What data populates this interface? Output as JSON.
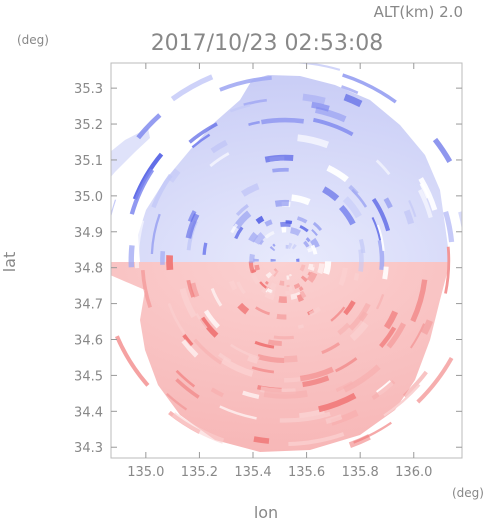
{
  "header": {
    "altitude_label": "ALT(km) 2.0",
    "timestamp": "2017/10/23 02:53:08"
  },
  "chart_data": {
    "type": "heatmap",
    "title": "2017/10/23 02:53:08",
    "subtitle": "ALT(km) 2.0",
    "xlabel": "lon",
    "ylabel": "lat",
    "x_unit": "(deg)",
    "y_unit": "(deg)",
    "xlim": [
      134.87,
      136.18
    ],
    "ylim": [
      34.27,
      35.37
    ],
    "x_ticks": [
      135.0,
      135.2,
      135.4,
      135.6,
      135.8,
      136.0
    ],
    "x_tick_labels": [
      "135.0",
      "135.2",
      "135.4",
      "135.6",
      "135.8",
      "136.0"
    ],
    "y_ticks": [
      34.3,
      34.4,
      34.5,
      34.6,
      34.7,
      34.8,
      34.9,
      35.0,
      35.1,
      35.2,
      35.3
    ],
    "y_tick_labels": [
      "34.3",
      "34.4",
      "34.5",
      "34.6",
      "34.7",
      "34.8",
      "34.9",
      "35.0",
      "35.1",
      "35.2",
      "35.3"
    ],
    "radar_center": {
      "lon": 135.52,
      "lat": 34.82
    },
    "radar_range_deg": {
      "lon": 0.63,
      "lat": 0.55
    },
    "colors": {
      "approaching": "#5a66e6",
      "receding": "#f07878",
      "neutral": "#ffffff",
      "text": "#888888",
      "frame": "#bbbbbb"
    },
    "grid": false
  }
}
